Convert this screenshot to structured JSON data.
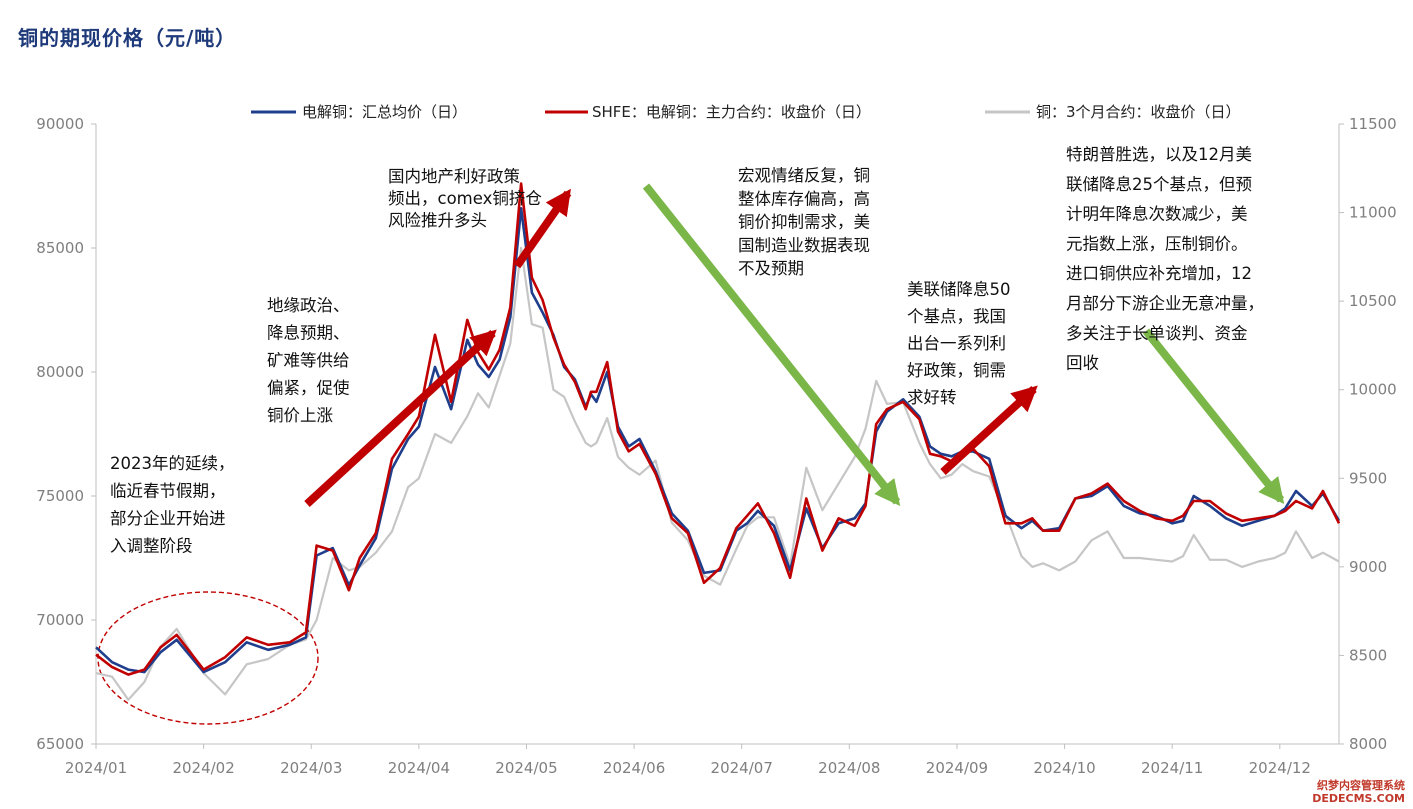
{
  "title": "铜的期现价格（元/吨）",
  "watermark": {
    "line1": "织梦内容管理系统",
    "line2": "DEDECMS.COM"
  },
  "chart_data": {
    "type": "line",
    "title": "铜的期现价格（元/吨）",
    "xlabel": "",
    "ylabel_left": "",
    "ylabel_right": "",
    "legend_position": "top",
    "grid": false,
    "x_ticks": [
      "2024/01",
      "2024/02",
      "2024/03",
      "2024/04",
      "2024/05",
      "2024/06",
      "2024/07",
      "2024/08",
      "2024/09",
      "2024/10",
      "2024/11",
      "2024/12"
    ],
    "y_left": {
      "min": 65000,
      "max": 90000,
      "ticks": [
        65000,
        70000,
        75000,
        80000,
        85000,
        90000
      ]
    },
    "y_right": {
      "min": 8000,
      "max": 11500,
      "ticks": [
        8000,
        8500,
        9000,
        9500,
        10000,
        10500,
        11000,
        11500
      ]
    },
    "series": [
      {
        "name": "电解铜：汇总均价（日）",
        "axis": "left",
        "color": "#1f3e8c",
        "x": [
          1.0,
          1.15,
          1.3,
          1.45,
          1.6,
          1.75,
          2.0,
          2.2,
          2.4,
          2.6,
          2.8,
          2.95,
          3.05,
          3.2,
          3.35,
          3.45,
          3.6,
          3.75,
          3.9,
          4.0,
          4.15,
          4.3,
          4.45,
          4.55,
          4.65,
          4.75,
          4.85,
          4.95,
          5.05,
          5.15,
          5.25,
          5.35,
          5.45,
          5.55,
          5.6,
          5.65,
          5.75,
          5.85,
          5.95,
          6.05,
          6.2,
          6.35,
          6.5,
          6.65,
          6.8,
          6.95,
          7.05,
          7.15,
          7.3,
          7.45,
          7.6,
          7.75,
          7.9,
          8.05,
          8.15,
          8.25,
          8.35,
          8.5,
          8.65,
          8.75,
          8.85,
          8.95,
          9.05,
          9.15,
          9.3,
          9.45,
          9.6,
          9.7,
          9.8,
          9.95,
          10.1,
          10.25,
          10.4,
          10.55,
          10.7,
          10.85,
          11.0,
          11.1,
          11.2,
          11.35,
          11.5,
          11.65,
          11.8,
          11.95,
          12.05,
          12.15,
          12.3,
          12.4,
          12.55
        ],
        "y": [
          68900,
          68300,
          68000,
          67900,
          68700,
          69200,
          67900,
          68300,
          69100,
          68800,
          69000,
          69300,
          72600,
          72900,
          71400,
          72200,
          73300,
          76100,
          77300,
          77800,
          80200,
          78500,
          81300,
          80300,
          79800,
          80500,
          82200,
          86600,
          83200,
          82400,
          81500,
          80200,
          79700,
          78600,
          79100,
          78800,
          80000,
          77800,
          77000,
          77300,
          76000,
          74300,
          73600,
          71900,
          72000,
          73600,
          73900,
          74400,
          73800,
          72000,
          74500,
          72900,
          73900,
          74100,
          74700,
          77600,
          78400,
          78900,
          78200,
          77000,
          76700,
          76600,
          76800,
          76800,
          76500,
          74200,
          73700,
          74000,
          73600,
          73700,
          74900,
          75000,
          75400,
          74600,
          74300,
          74200,
          73900,
          74000,
          75000,
          74600,
          74100,
          73800,
          74000,
          74200,
          74500,
          75200,
          74600,
          75100,
          74000
        ]
      },
      {
        "name": "SHFE：电解铜：主力合约：收盘价（日）",
        "axis": "left",
        "color": "#c00000",
        "x": [
          1.0,
          1.15,
          1.3,
          1.45,
          1.6,
          1.75,
          2.0,
          2.2,
          2.4,
          2.6,
          2.8,
          2.95,
          3.05,
          3.2,
          3.35,
          3.45,
          3.6,
          3.75,
          3.9,
          4.0,
          4.15,
          4.3,
          4.45,
          4.55,
          4.65,
          4.75,
          4.85,
          4.95,
          5.05,
          5.15,
          5.25,
          5.35,
          5.45,
          5.55,
          5.6,
          5.65,
          5.75,
          5.85,
          5.95,
          6.05,
          6.2,
          6.35,
          6.5,
          6.65,
          6.8,
          6.95,
          7.05,
          7.15,
          7.3,
          7.45,
          7.6,
          7.75,
          7.9,
          8.05,
          8.15,
          8.25,
          8.35,
          8.5,
          8.65,
          8.75,
          8.85,
          8.95,
          9.05,
          9.15,
          9.3,
          9.45,
          9.6,
          9.7,
          9.8,
          9.95,
          10.1,
          10.25,
          10.4,
          10.55,
          10.7,
          10.85,
          11.0,
          11.1,
          11.2,
          11.35,
          11.5,
          11.65,
          11.8,
          11.95,
          12.05,
          12.15,
          12.3,
          12.4,
          12.55
        ],
        "y": [
          68600,
          68100,
          67800,
          68000,
          68900,
          69400,
          68000,
          68500,
          69300,
          69000,
          69100,
          69500,
          73000,
          72800,
          71200,
          72500,
          73500,
          76500,
          77500,
          78200,
          81500,
          78800,
          82100,
          80800,
          80100,
          80900,
          82600,
          87600,
          83800,
          82900,
          81400,
          80300,
          79600,
          78500,
          79200,
          79200,
          80400,
          77600,
          76800,
          77100,
          75900,
          74100,
          73500,
          71500,
          72100,
          73700,
          74200,
          74700,
          73500,
          71700,
          74900,
          72800,
          74100,
          73800,
          74600,
          77900,
          78500,
          78800,
          78100,
          76700,
          76600,
          76400,
          76600,
          76900,
          76200,
          73900,
          73900,
          74100,
          73600,
          73600,
          74900,
          75100,
          75500,
          74800,
          74400,
          74100,
          74000,
          74200,
          74800,
          74800,
          74300,
          74000,
          74100,
          74200,
          74400,
          74800,
          74500,
          75200,
          73900
        ]
      },
      {
        "name": "铜：3个月合约：收盘价（日）",
        "axis": "right",
        "color": "#c6c6c6",
        "x": [
          1.0,
          1.15,
          1.3,
          1.45,
          1.6,
          1.75,
          2.0,
          2.2,
          2.4,
          2.6,
          2.8,
          2.95,
          3.05,
          3.2,
          3.35,
          3.45,
          3.6,
          3.75,
          3.9,
          4.0,
          4.15,
          4.3,
          4.45,
          4.55,
          4.65,
          4.75,
          4.85,
          4.95,
          5.05,
          5.15,
          5.25,
          5.35,
          5.45,
          5.55,
          5.6,
          5.65,
          5.75,
          5.85,
          5.95,
          6.05,
          6.2,
          6.35,
          6.5,
          6.65,
          6.8,
          6.95,
          7.05,
          7.15,
          7.3,
          7.45,
          7.6,
          7.75,
          7.9,
          8.05,
          8.15,
          8.25,
          8.35,
          8.5,
          8.65,
          8.75,
          8.85,
          8.95,
          9.05,
          9.15,
          9.3,
          9.45,
          9.6,
          9.7,
          9.8,
          9.95,
          10.1,
          10.25,
          10.4,
          10.55,
          10.7,
          10.85,
          11.0,
          11.1,
          11.2,
          11.35,
          11.5,
          11.65,
          11.8,
          11.95,
          12.05,
          12.15,
          12.3,
          12.4,
          12.55
        ],
        "y": [
          8400,
          8380,
          8250,
          8350,
          8550,
          8650,
          8400,
          8280,
          8450,
          8480,
          8560,
          8590,
          8700,
          9050,
          8980,
          9000,
          9080,
          9200,
          9450,
          9500,
          9750,
          9700,
          9850,
          9980,
          9900,
          10080,
          10260,
          10800,
          10370,
          10350,
          10000,
          9960,
          9820,
          9700,
          9680,
          9700,
          9840,
          9620,
          9560,
          9520,
          9600,
          9250,
          9150,
          8950,
          8900,
          9100,
          9230,
          9280,
          9280,
          9010,
          9560,
          9320,
          9470,
          9620,
          9780,
          10050,
          9920,
          9930,
          9700,
          9580,
          9500,
          9520,
          9580,
          9540,
          9510,
          9300,
          9060,
          9000,
          9020,
          8980,
          9030,
          9150,
          9200,
          9050,
          9050,
          9040,
          9030,
          9060,
          9180,
          9040,
          9040,
          9000,
          9030,
          9050,
          9080,
          9200,
          9050,
          9080,
          9030
        ]
      }
    ],
    "annotations": [
      {
        "lines": [
          "2023年的延续，",
          "临近春节假期，",
          "部分企业开始进",
          "入调整阶段"
        ]
      },
      {
        "lines": [
          "地缘政治、",
          "降息预期、",
          "矿难等供给",
          "偏紧，促使",
          "铜价上涨"
        ]
      },
      {
        "lines": [
          "国内地产利好政策",
          "频出，comex铜挤仓",
          "风险推升多头"
        ]
      },
      {
        "lines": [
          "宏观情绪反复，铜",
          "整体库存偏高，高",
          "铜价抑制需求，美",
          "国制造业数据表现",
          "不及预期"
        ]
      },
      {
        "lines": [
          "美联储降息50",
          "个基点，我国",
          "出台一系列利",
          "好政策，铜需",
          "求好转"
        ]
      },
      {
        "lines": [
          "特朗普胜选，以及12月美",
          "联储降息25个基点，但预",
          "计明年降息次数减少，美",
          "元指数上涨，压制铜价。",
          "进口铜供应补充增加，12",
          "月部分下游企业无意冲量，",
          "多关注于长单谈判、资金",
          "回收"
        ]
      }
    ]
  }
}
